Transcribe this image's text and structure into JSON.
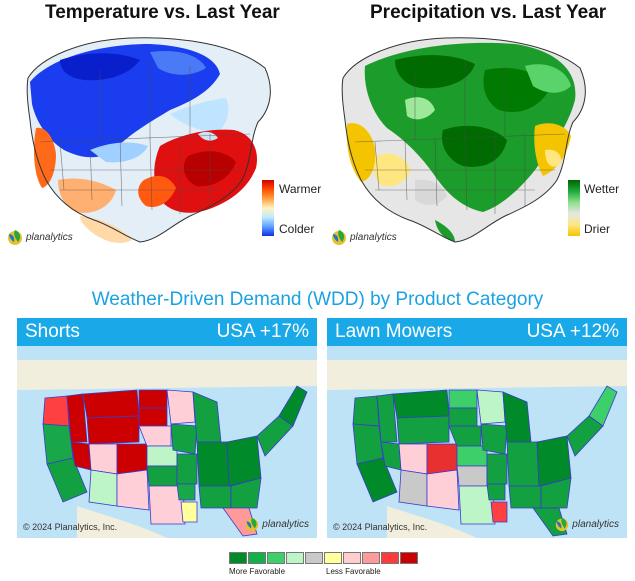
{
  "temperature_map": {
    "title": "Temperature vs. Last Year",
    "legend": {
      "high": "Warmer",
      "low": "Colder"
    },
    "ramp_colors": [
      "#d40000",
      "#ff4d00",
      "#ffa040",
      "#fff3c0",
      "#bfe8ff",
      "#5aa0ff",
      "#1030e0"
    ],
    "brand": "planalytics"
  },
  "precipitation_map": {
    "title": "Precipitation vs. Last Year",
    "legend": {
      "high": "Wetter",
      "low": "Drier"
    },
    "ramp_colors": [
      "#006400",
      "#1faa3a",
      "#8de08a",
      "#e6e6e6",
      "#ffe680",
      "#f5c400"
    ],
    "brand": "planalytics"
  },
  "wdd_title": "Weather-Driven Demand (WDD) by Product Category",
  "cards": [
    {
      "category": "Shorts",
      "usa_change": "USA +17%",
      "copyright": "© 2024 Planalytics, Inc.",
      "brand": "planalytics"
    },
    {
      "category": "Lawn Mowers",
      "usa_change": "USA +12%",
      "copyright": "© 2024 Planalytics, Inc.",
      "brand": "planalytics"
    }
  ],
  "scale": {
    "colors": [
      "#008a2a",
      "#12b04a",
      "#3ccf6a",
      "#bdf5c6",
      "#c9c9c9",
      "#ffff9c",
      "#ffcfcf",
      "#ff9a9a",
      "#ff3a3a",
      "#cc0000"
    ],
    "more_label": "More Favorable",
    "less_label": "Less Favorable"
  }
}
